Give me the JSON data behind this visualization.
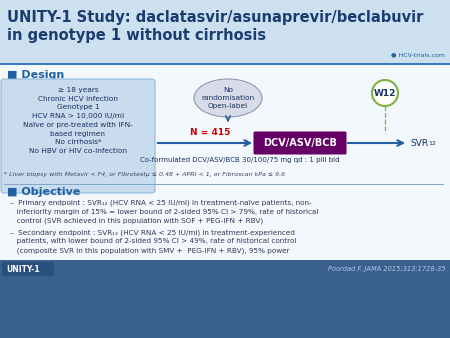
{
  "title_line1": "UNITY-1 Study: daclatasvir/asunaprevir/beclabuvir",
  "title_line2": "in genotype 1 without cirrhosis",
  "title_color": "#1a3c6e",
  "title_bg": "#cce0f0",
  "header_line_color": "#3a7abf",
  "design_color": "#2060a0",
  "inclusion_lines": [
    "≥ 18 years",
    "Chronic HCV infection",
    "Genotype 1",
    "HCV RNA > 10,000 IU/ml",
    "Naïve or pre-treated with IFN-",
    "based regimen",
    "No cirrhosis*",
    "No HBV or HIV co-infection"
  ],
  "inclusion_box_color": "#c8dced",
  "randomisation_text": "No\nrandomisation\nOpen-label",
  "n_color": "#cc0000",
  "dcv_label": "DCV/ASV/BCB",
  "dcv_box_color": "#660066",
  "dcv_text_color": "#ffffff",
  "w12_label": "W12",
  "w12_circle_color": "#80b040",
  "arrow_color": "#2060a0",
  "coformulated_text": "Co-formulated DCV/ASV/BCB 30/100/75 mg qd : 1 pill bid",
  "footnote": "* Liver biopsy with Metavir < F4, or Fibrotestµ ≤ 0.48 + APRI < 1, or Fibroscan kPa ≤ 9.6",
  "objective_color": "#2060a0",
  "bullet1_line1": "–  Primary endpoint : SVR₁₂ (HCV RNA < 25 IU/ml) in treatment-naïve patients, non-",
  "bullet1_line2": "   inferiority margin of 15% = lower bound of 2-sided 95% CI > 79%, rate of historical",
  "bullet1_line3": "   control (SVR achieved in this population with SOF + PEG-IFN + RBV)",
  "bullet2_line1": "–  Secondary endpoint : SVR₁₂ (HCV RNA < 25 IU/ml) in treatment-experienced",
  "bullet2_line2": "   patients, with lower bound of 2-sided 95% CI > 49%, rate of historical control",
  "bullet2_line3": "   (composite SVR in this population with SMV +  PEG-IFN + RBV), 95% power",
  "unity_label": "UNITY-1",
  "citation": "Poordad F. JAMA 2015;313:1728-35",
  "bg_body": "#eaf3f9",
  "bg_bottom": "#3a6090"
}
